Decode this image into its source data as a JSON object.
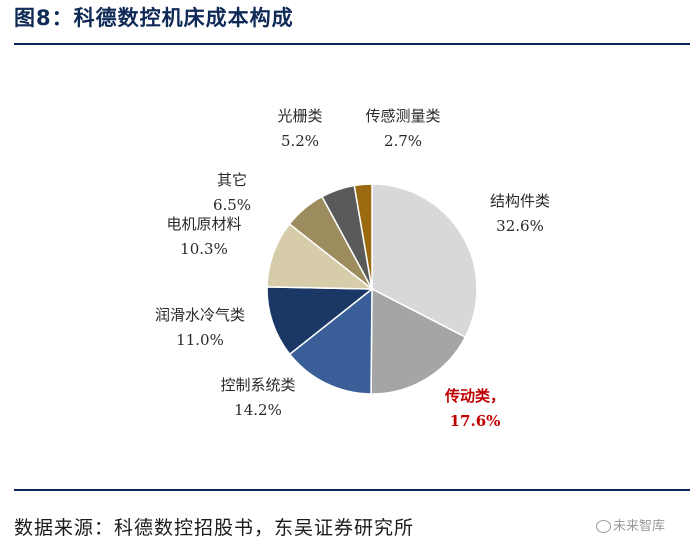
{
  "title": "图8：科德数控机床成本构成",
  "source": "数据来源：科德数控招股书，东吴证券研究所",
  "watermark": "未来智库",
  "chart_data": {
    "type": "pie",
    "slices": [
      {
        "name": "结构件类",
        "pct": "32.6%",
        "value": 32.6,
        "color": "#d8d8da"
      },
      {
        "name": "传动类，",
        "pct": "17.6%",
        "value": 17.6,
        "color": "#a5a5a5",
        "highlight": true
      },
      {
        "name": "控制系统类",
        "pct": "14.2%",
        "value": 14.2,
        "color": "#3a5f98"
      },
      {
        "name": "润滑水冷气类",
        "pct": "11.0%",
        "value": 11.0,
        "color": "#1b3766"
      },
      {
        "name": "电机原材料",
        "pct": "10.3%",
        "value": 10.3,
        "color": "#d6ccaa"
      },
      {
        "name": "其它",
        "pct": "6.5%",
        "value": 6.5,
        "color": "#9d8c5d"
      },
      {
        "name": "光栅类",
        "pct": "5.2%",
        "value": 5.2,
        "color": "#5a5a5a"
      },
      {
        "name": "传感测量类",
        "pct": "2.7%",
        "value": 2.7,
        "color": "#9a6a10"
      }
    ]
  }
}
